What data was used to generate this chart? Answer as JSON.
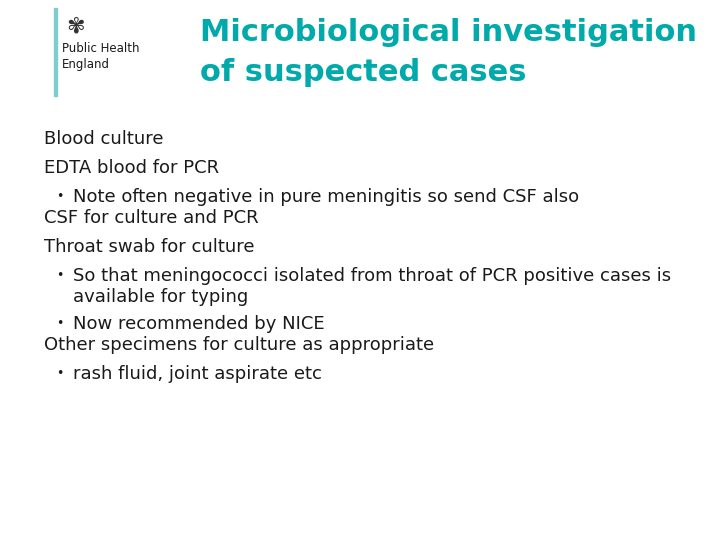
{
  "title_line1": "Microbiological investigation",
  "title_line2": "of suspected cases",
  "title_color": "#00AAAA",
  "background_color": "#ffffff",
  "body_text_color": "#1a1a1a",
  "logo_text_line1": "Public Health",
  "logo_text_line2": "England",
  "logo_bar_color": "#7ECECE",
  "body_items": [
    {
      "type": "heading",
      "text": "Blood culture"
    },
    {
      "type": "heading",
      "text": "EDTA blood for PCR"
    },
    {
      "type": "bullet",
      "text": "Note often negative in pure meningitis so send CSF also"
    },
    {
      "type": "heading",
      "text": "CSF for culture and PCR"
    },
    {
      "type": "heading",
      "text": "Throat swab for culture"
    },
    {
      "type": "bullet",
      "text": "So that meningococci isolated from throat of PCR positive cases is"
    },
    {
      "type": "bullet_cont",
      "text": "available for typing"
    },
    {
      "type": "bullet",
      "text": "Now recommended by NICE"
    },
    {
      "type": "heading",
      "text": "Other specimens for culture as appropriate"
    },
    {
      "type": "bullet",
      "text": "rash fluid, joint aspirate etc"
    }
  ],
  "heading_fontsize": 13,
  "bullet_fontsize": 13,
  "title_fontsize": 22,
  "fig_width": 7.2,
  "fig_height": 5.4,
  "dpi": 100
}
